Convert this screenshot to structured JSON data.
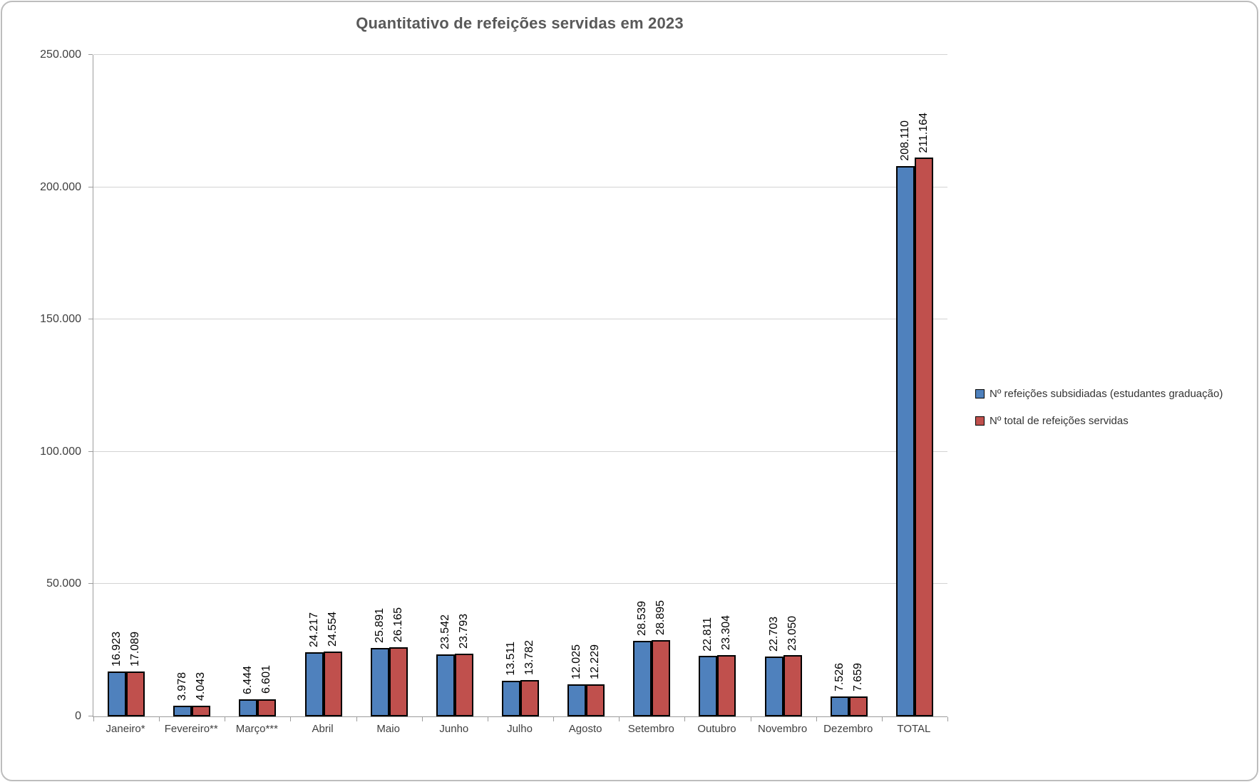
{
  "window": {
    "background": "#ffffff",
    "frame_border_color": "#bdbdbd"
  },
  "chart_data": {
    "type": "bar",
    "title": "Quantitativo de refeições servidas em 2023",
    "categories": [
      "Janeiro*",
      "Fevereiro**",
      "Março***",
      "Abril",
      "Maio",
      "Junho",
      "Julho",
      "Agosto",
      "Setembro",
      "Outubro",
      "Novembro",
      "Dezembro",
      "TOTAL"
    ],
    "series": [
      {
        "name": "Nº refeições subsidiadas (estudantes graduação)",
        "color": "#4F81BD",
        "border_color": "#000000",
        "values": [
          16923,
          3978,
          6444,
          24217,
          25891,
          23542,
          13511,
          12025,
          28539,
          22811,
          22703,
          7526,
          208110
        ]
      },
      {
        "name": "Nº total de refeições servidas",
        "color": "#C0504D",
        "border_color": "#000000",
        "values": [
          17089,
          4043,
          6601,
          24554,
          26165,
          23793,
          13782,
          12229,
          28895,
          23304,
          23050,
          7659,
          211164
        ]
      }
    ],
    "ylim": [
      0,
      250000
    ],
    "ytick_step": 50000,
    "ytick_labels": [
      "0",
      "50.000",
      "100.000",
      "150.000",
      "200.000",
      "250.000"
    ],
    "grid": true,
    "legend_position": "right",
    "data_label_rotation": -90,
    "number_format": "thousands-dot",
    "title_color": "#595959",
    "axis_text_color": "#3f3f3f",
    "gridline_color": "#d3d3d3",
    "axis_line_color": "#9c9c9c"
  }
}
